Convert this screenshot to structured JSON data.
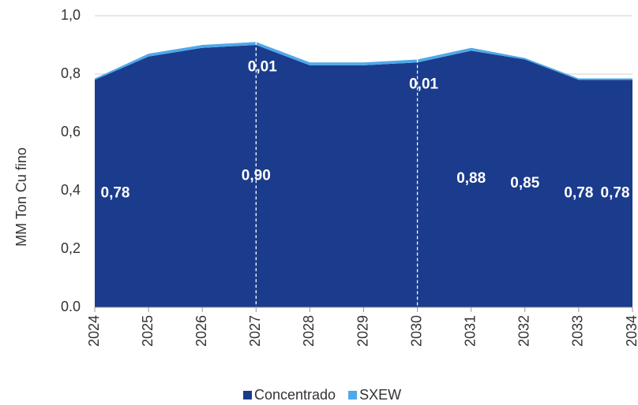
{
  "chart_data": {
    "type": "stacked_area",
    "y_label": "MM Ton Cu fino",
    "categories": [
      "2024",
      "2025",
      "2026",
      "2027",
      "2028",
      "2029",
      "2030",
      "2031",
      "2032",
      "2033",
      "2034"
    ],
    "series": [
      {
        "name": "Concentrado",
        "color": "#1b3c8c",
        "values": [
          0.78,
          0.86,
          0.89,
          0.9,
          0.83,
          0.83,
          0.84,
          0.88,
          0.85,
          0.78,
          0.78
        ],
        "value_labels": [
          "0,78",
          null,
          null,
          "0,90",
          null,
          null,
          null,
          "0,88",
          "0,85",
          "0,78",
          "0,78"
        ]
      },
      {
        "name": "SXEW",
        "color": "#4ea8ea",
        "values": [
          0.005,
          0.01,
          0.01,
          0.01,
          0.01,
          0.01,
          0.01,
          0.01,
          0.005,
          0.005,
          0.005
        ],
        "value_labels": [
          null,
          null,
          null,
          "0,01",
          null,
          null,
          "0,01",
          null,
          null,
          null,
          null
        ]
      }
    ],
    "ylim": [
      0,
      1.0
    ],
    "yticks": [
      {
        "value": 0,
        "label": "0.0"
      },
      {
        "value": 0.2,
        "label": "0,2"
      },
      {
        "value": 0.4,
        "label": "0,4"
      },
      {
        "value": 0.6,
        "label": "0,6"
      },
      {
        "value": 0.8,
        "label": "0,8"
      },
      {
        "value": 1.0,
        "label": "1,0"
      }
    ],
    "grid": true,
    "legend": "bottom"
  }
}
